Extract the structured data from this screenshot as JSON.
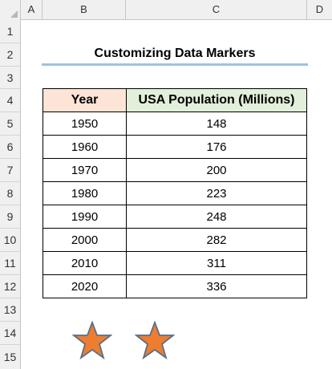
{
  "columns": [
    "A",
    "B",
    "C",
    "D"
  ],
  "rows": [
    "1",
    "2",
    "3",
    "4",
    "5",
    "6",
    "7",
    "8",
    "9",
    "10",
    "11",
    "12",
    "13",
    "14",
    "15"
  ],
  "title": "Customizing Data Markers",
  "table": {
    "headers": [
      "Year",
      "USA Population (Millions)"
    ],
    "rows": [
      [
        "1950",
        "148"
      ],
      [
        "1960",
        "176"
      ],
      [
        "1970",
        "200"
      ],
      [
        "1980",
        "223"
      ],
      [
        "1990",
        "248"
      ],
      [
        "2000",
        "282"
      ],
      [
        "2010",
        "311"
      ],
      [
        "2020",
        "336"
      ]
    ]
  },
  "colors": {
    "year_header_fill": "#fce4d6",
    "population_header_fill": "#e2efda",
    "title_underline": "#9dc3e6",
    "star_fill": "#ed7d31",
    "star_outline": "#5b6f86"
  },
  "shapes": [
    {
      "icon": "star-icon"
    },
    {
      "icon": "star-icon"
    }
  ]
}
